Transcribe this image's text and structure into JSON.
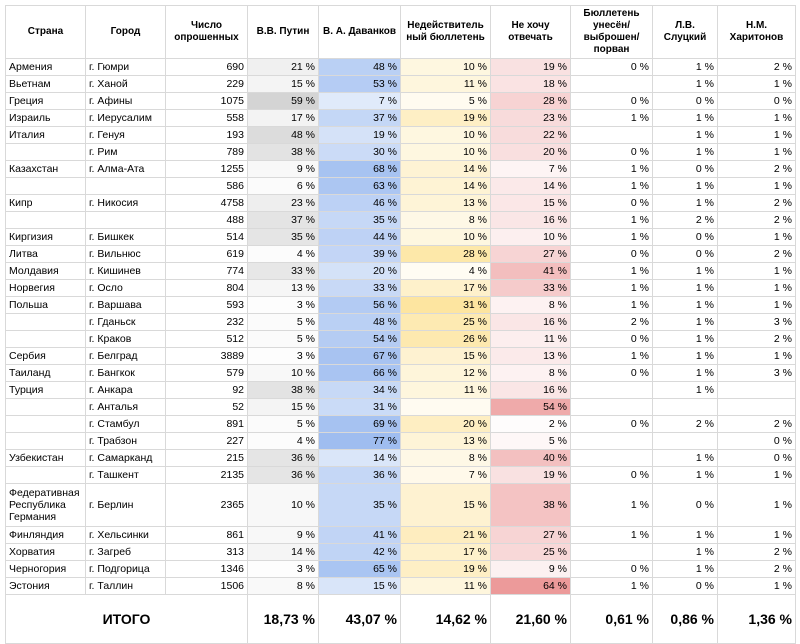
{
  "headers": [
    "Страна",
    "Город",
    "Число опрошенных",
    "В.В. Путин",
    "В. А. Даванков",
    "Недействитель ный бюллетень",
    "Не хочу отвечать",
    "Бюллетень унесён/ выброшен/ порван",
    "Л.В. Слуцкий",
    "Н.М. Харитонов"
  ],
  "heat_colors": {
    "putin": "#d4d4d4",
    "davankov": "#9fbdf0",
    "invalid": "#fde5a0",
    "noanswer": "#ec9a9a"
  },
  "rows": [
    [
      "Армения",
      "г. Гюмри",
      "690",
      "21 %",
      "48 %",
      "10 %",
      "19 %",
      "0 %",
      "1 %",
      "2 %"
    ],
    [
      "Вьетнам",
      "г. Ханой",
      "229",
      "15 %",
      "53 %",
      "11 %",
      "18 %",
      "",
      "1 %",
      "1 %"
    ],
    [
      "Греция",
      "г. Афины",
      "1075",
      "59 %",
      "7 %",
      "5 %",
      "28 %",
      "0 %",
      "0 %",
      "0 %"
    ],
    [
      "Израиль",
      "г. Иерусалим",
      "558",
      "17 %",
      "37 %",
      "19 %",
      "23 %",
      "1 %",
      "1 %",
      "1 %"
    ],
    [
      "Италия",
      "г. Генуя",
      "193",
      "48 %",
      "19 %",
      "10 %",
      "22 %",
      "",
      "1 %",
      "1 %"
    ],
    [
      "",
      "г. Рим",
      "789",
      "38 %",
      "30 %",
      "10 %",
      "20 %",
      "0 %",
      "1 %",
      "1 %"
    ],
    [
      "Казахстан",
      "г. Алма-Ата",
      "1255",
      "9 %",
      "68 %",
      "14 %",
      "7 %",
      "1 %",
      "0 %",
      "2 %"
    ],
    [
      "",
      "",
      "586",
      "6 %",
      "63 %",
      "14 %",
      "14 %",
      "1 %",
      "1 %",
      "1 %"
    ],
    [
      "Кипр",
      "г. Никосия",
      "4758",
      "23 %",
      "46 %",
      "13 %",
      "15 %",
      "0 %",
      "1 %",
      "2 %"
    ],
    [
      "",
      "",
      "488",
      "37 %",
      "35 %",
      "8 %",
      "16 %",
      "1 %",
      "2 %",
      "2 %"
    ],
    [
      "Киргизия",
      "г. Бишкек",
      "514",
      "35 %",
      "44 %",
      "10 %",
      "10 %",
      "1 %",
      "0 %",
      "1 %"
    ],
    [
      "Литва",
      "г. Вильнюс",
      "619",
      "4 %",
      "39 %",
      "28 %",
      "27 %",
      "0 %",
      "0 %",
      "2 %"
    ],
    [
      "Молдавия",
      "г. Кишинев",
      "774",
      "33 %",
      "20 %",
      "4 %",
      "41 %",
      "1 %",
      "1 %",
      "1 %"
    ],
    [
      "Норвегия",
      "г. Осло",
      "804",
      "13 %",
      "33 %",
      "17 %",
      "33 %",
      "1 %",
      "1 %",
      "1 %"
    ],
    [
      "Польша",
      "г. Варшава",
      "593",
      "3 %",
      "56 %",
      "31 %",
      "8 %",
      "1 %",
      "1 %",
      "1 %"
    ],
    [
      "",
      "г. Гданьск",
      "232",
      "5 %",
      "48 %",
      "25 %",
      "16 %",
      "2 %",
      "1 %",
      "3 %"
    ],
    [
      "",
      "г. Краков",
      "512",
      "5 %",
      "54 %",
      "26 %",
      "11 %",
      "0 %",
      "1 %",
      "2 %"
    ],
    [
      "Сербия",
      "г. Белград",
      "3889",
      "3 %",
      "67 %",
      "15 %",
      "13 %",
      "1 %",
      "1 %",
      "1 %"
    ],
    [
      "Таиланд",
      "г. Бангкок",
      "579",
      "10 %",
      "66 %",
      "12 %",
      "8 %",
      "0 %",
      "1 %",
      "3 %"
    ],
    [
      "Турция",
      "г. Анкара",
      "92",
      "38 %",
      "34 %",
      "11 %",
      "16 %",
      "",
      "1 %",
      ""
    ],
    [
      "",
      "г. Анталья",
      "52",
      "15 %",
      "31 %",
      "",
      "54 %",
      "",
      "",
      ""
    ],
    [
      "",
      "г. Стамбул",
      "891",
      "5 %",
      "69 %",
      "20 %",
      "2 %",
      "0 %",
      "2 %",
      "2 %"
    ],
    [
      "",
      "г. Трабзон",
      "227",
      "4 %",
      "77 %",
      "13 %",
      "5 %",
      "",
      "",
      "0 %"
    ],
    [
      "Узбекистан",
      "г. Самарканд",
      "215",
      "36 %",
      "14 %",
      "8 %",
      "40 %",
      "",
      "1 %",
      "0 %"
    ],
    [
      "",
      "г. Ташкент",
      "2135",
      "36 %",
      "36 %",
      "7 %",
      "19 %",
      "0 %",
      "1 %",
      "1 %"
    ],
    [
      "Федеративная Республика Германия",
      "г. Берлин",
      "2365",
      "10 %",
      "35 %",
      "15 %",
      "38 %",
      "1 %",
      "0 %",
      "1 %"
    ],
    [
      "Финляндия",
      "г. Хельсинки",
      "861",
      "9 %",
      "41 %",
      "21 %",
      "27 %",
      "1 %",
      "1 %",
      "1 %"
    ],
    [
      "Хорватия",
      "г. Загреб",
      "313",
      "14 %",
      "42 %",
      "17 %",
      "25 %",
      "",
      "1 %",
      "2 %"
    ],
    [
      "Черногория",
      "г. Подгорица",
      "1346",
      "3 %",
      "65 %",
      "19 %",
      "9 %",
      "0 %",
      "1 %",
      "2 %"
    ],
    [
      "Эстония",
      "г. Таллин",
      "1506",
      "8 %",
      "15 %",
      "11 %",
      "64 %",
      "1 %",
      "0 %",
      "1 %"
    ]
  ],
  "total": {
    "label": "ИТОГО",
    "values": [
      "18,73 %",
      "43,07 %",
      "14,62 %",
      "21,60 %",
      "0,61 %",
      "0,86 %",
      "1,36 %"
    ]
  }
}
